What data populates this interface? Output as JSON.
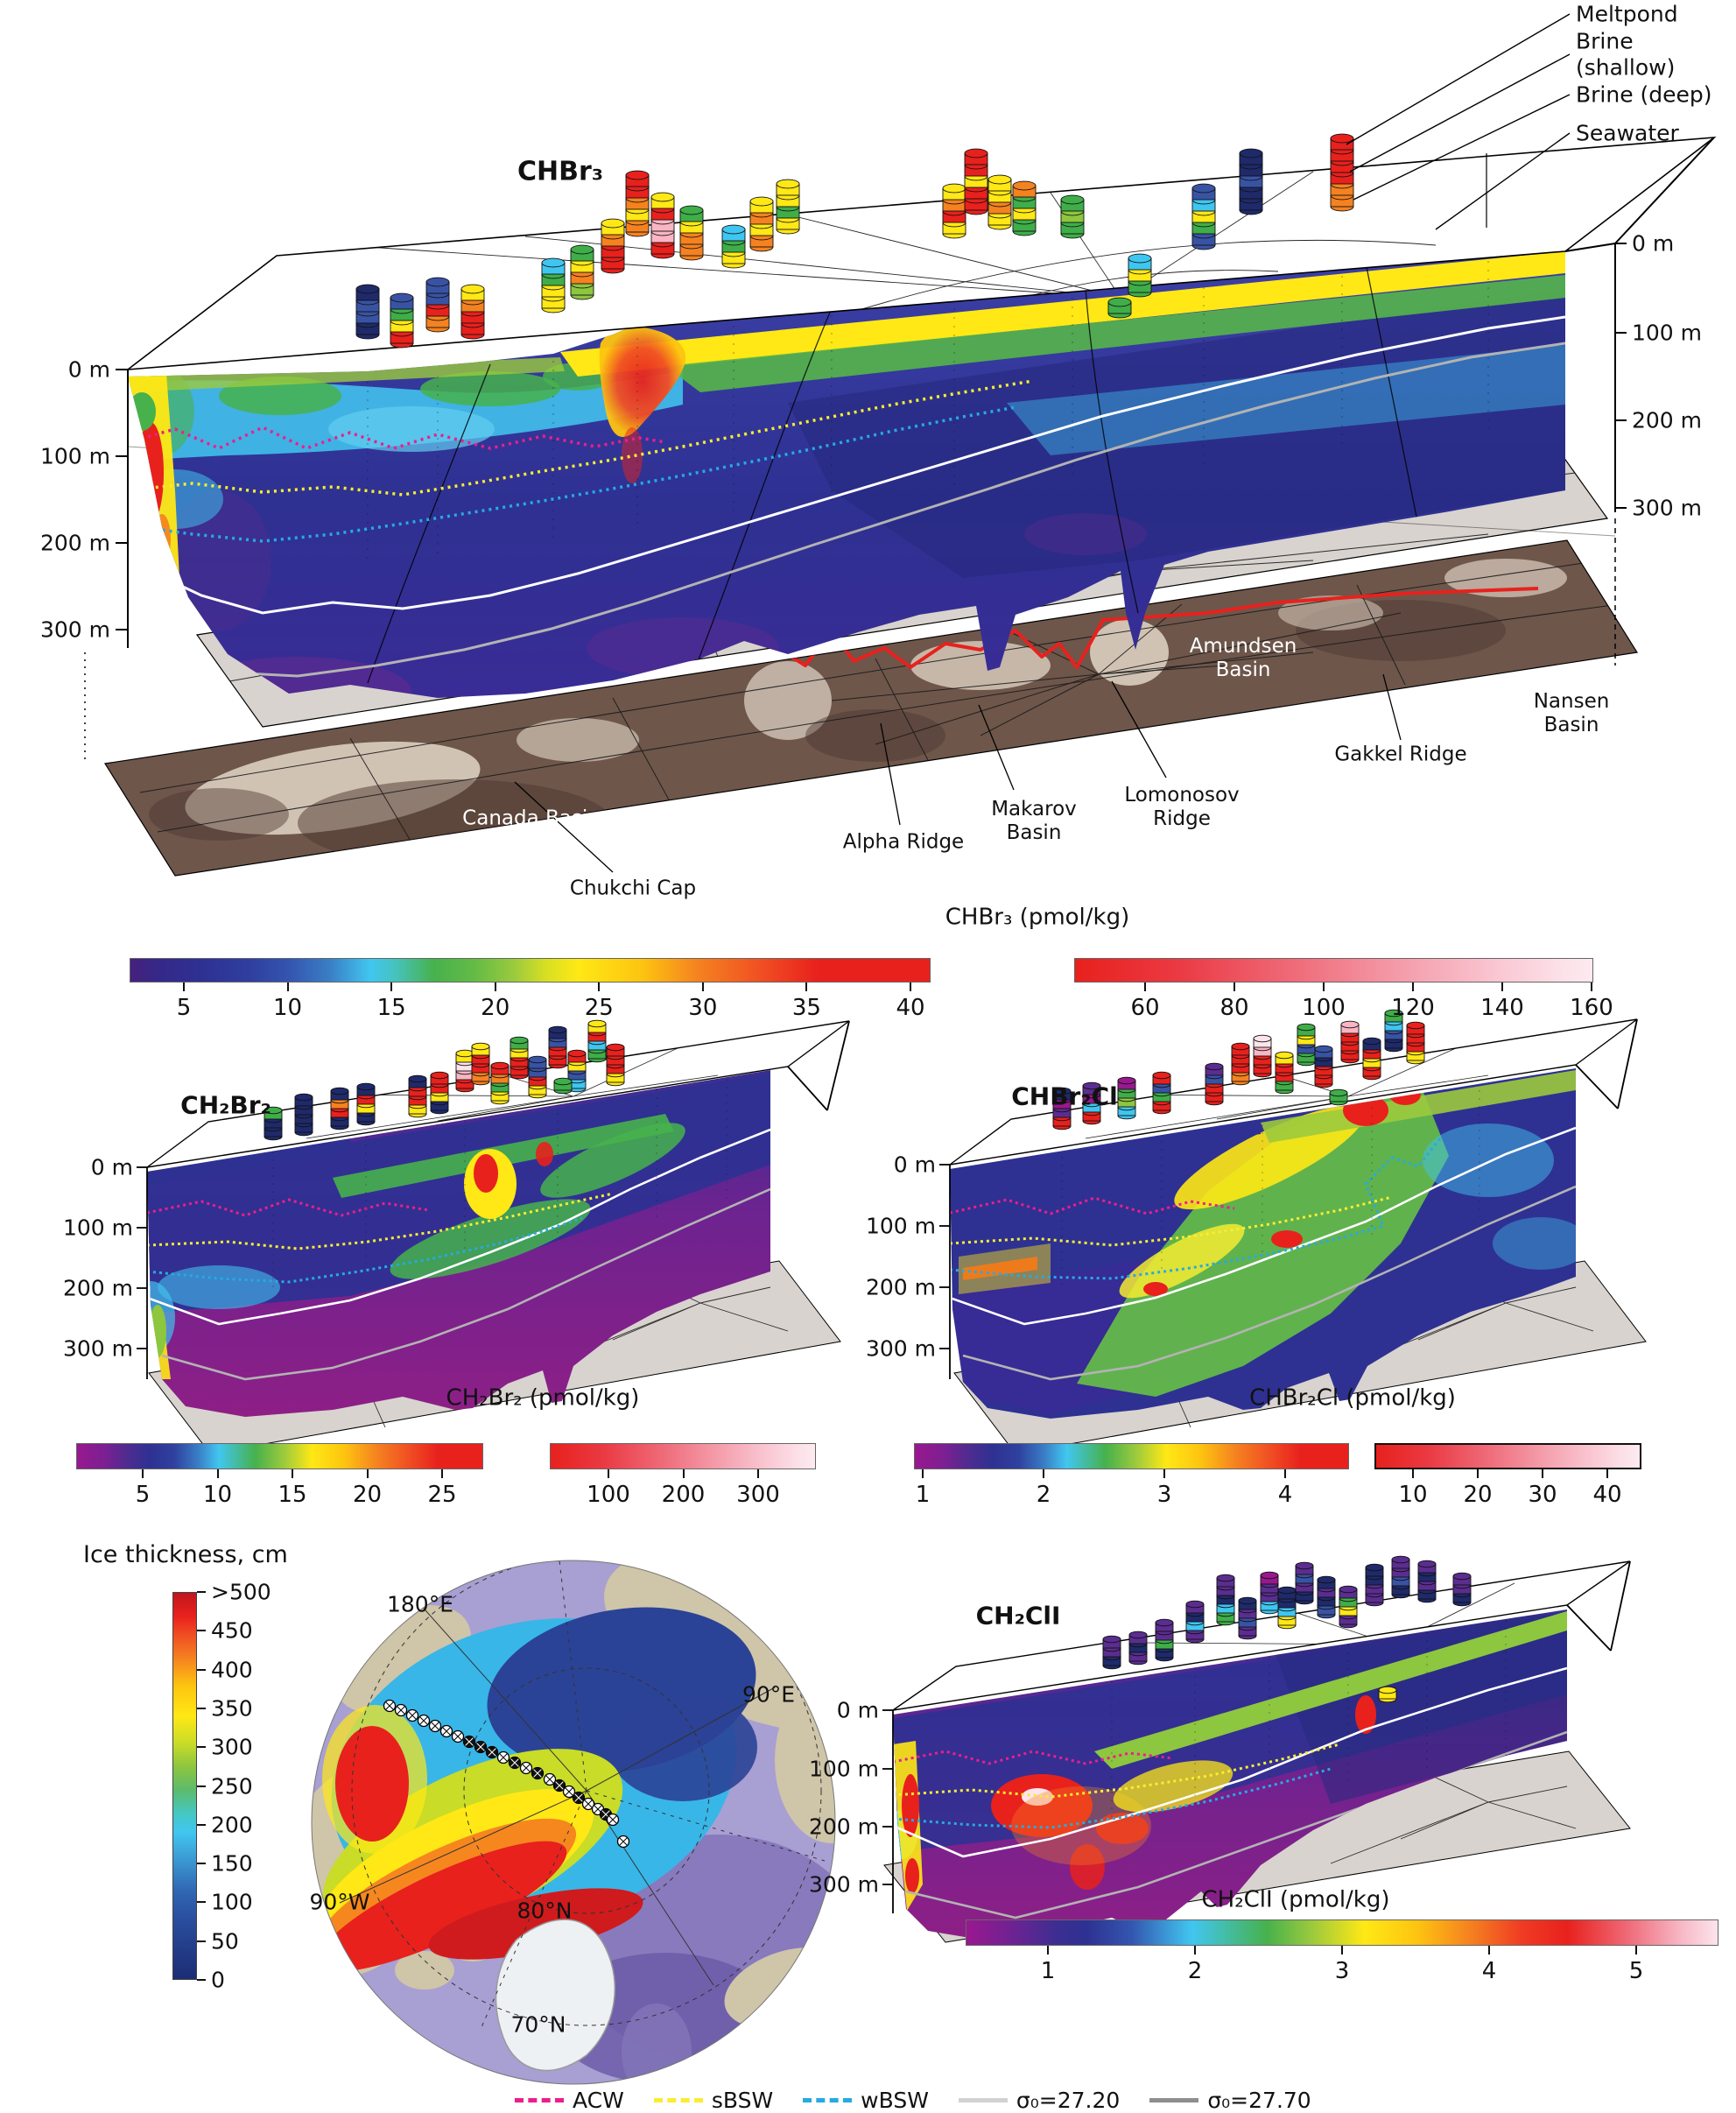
{
  "palette": {
    "R": "#e8211d",
    "O": "#f58220",
    "Y": "#ffe815",
    "G": "#3fae49",
    "LG": "#8dc63f",
    "C": "#3fc6f0",
    "B": "#3953a4",
    "N": "#1f2a6b",
    "P": "#f9b5c4",
    "W": "#fce4ec",
    "M": "#99188f",
    "V": "#5b2d90"
  },
  "chbr3": {
    "title": "CHBr₃",
    "callouts": {
      "meltpond": "Meltpond",
      "brine_shallow": "Brine (shallow)",
      "brine_deep": "Brine (deep)",
      "seawater": "Seawater"
    },
    "depth_left": [
      "0 m",
      "100 m",
      "200 m",
      "300 m"
    ],
    "depth_right": [
      "0 m",
      "100 m",
      "200 m",
      "300 m"
    ],
    "geo": {
      "canada": "Canada Basin",
      "chukchi": "Chukchi Cap",
      "alpha": "Alpha Ridge",
      "makarov": "Makarov\nBasin",
      "lomonosov": "Lomonosov\nRidge",
      "amundsen": "Amundsen\nBasin",
      "gakkel": "Gakkel Ridge",
      "nansen": "Nansen\nBasin"
    },
    "colorbar": {
      "title": "CHBr₃ (pmol/kg)",
      "ticks1": [
        "5",
        "10",
        "15",
        "20",
        "25",
        "30",
        "35",
        "40"
      ],
      "ticks2": [
        "60",
        "80",
        "100",
        "120",
        "140",
        "160"
      ]
    },
    "cylinders": [
      [
        420,
        330,
        [
          "N",
          "B",
          "B",
          "N"
        ]
      ],
      [
        459,
        340,
        [
          "B",
          "G",
          "Y",
          "R"
        ]
      ],
      [
        500,
        322,
        [
          "B",
          "B",
          "R",
          "O"
        ]
      ],
      [
        540,
        330,
        [
          "Y",
          "O",
          "R",
          "R"
        ]
      ],
      [
        632,
        300,
        [
          "C",
          "G",
          "Y",
          "Y"
        ]
      ],
      [
        665,
        285,
        [
          "G",
          "Y",
          "O",
          "LG"
        ]
      ],
      [
        700,
        255,
        [
          "Y",
          "O",
          "R",
          "R"
        ]
      ],
      [
        728,
        200,
        [
          "R",
          "R",
          "O",
          "Y",
          "O"
        ]
      ],
      [
        757,
        225,
        [
          "Y",
          "R",
          "P",
          "P",
          "R"
        ]
      ],
      [
        790,
        240,
        [
          "G",
          "Y",
          "O",
          "O"
        ]
      ],
      [
        838,
        262,
        [
          "C",
          "G",
          "Y"
        ]
      ],
      [
        870,
        230,
        [
          "Y",
          "O",
          "Y",
          "O"
        ]
      ],
      [
        900,
        210,
        [
          "Y",
          "Y",
          "G",
          "Y"
        ]
      ],
      [
        1090,
        215,
        [
          "Y",
          "O",
          "R",
          "Y"
        ]
      ],
      [
        1115,
        175,
        [
          "R",
          "R",
          "Y",
          "R",
          "R"
        ]
      ],
      [
        1142,
        205,
        [
          "Y",
          "Y",
          "O",
          "Y"
        ]
      ],
      [
        1170,
        212,
        [
          "O",
          "G",
          "Y",
          "G"
        ]
      ],
      [
        1225,
        228,
        [
          "G",
          "LG",
          "G"
        ]
      ],
      [
        1279,
        345,
        [
          "G"
        ]
      ],
      [
        1302,
        295,
        [
          "C",
          "Y",
          "G"
        ]
      ],
      [
        1375,
        215,
        [
          "B",
          "C",
          "Y",
          "G",
          "B"
        ]
      ],
      [
        1429,
        175,
        [
          "N",
          "N",
          "B",
          "N",
          "N"
        ]
      ],
      [
        1533,
        158,
        [
          "R",
          "R",
          "R",
          "R",
          "O",
          "O"
        ]
      ]
    ]
  },
  "ch2br2": {
    "title": "CH₂Br₂",
    "depth_left": [
      "0 m",
      "100 m",
      "200 m",
      "300 m"
    ],
    "colorbar": {
      "title": "CH₂Br₂ (pmol/kg)",
      "ticks1": [
        "5",
        "10",
        "15",
        "20",
        "25"
      ],
      "ticks2": [
        "100",
        "200",
        "300"
      ]
    },
    "cylinders": [
      [
        312,
        1268,
        [
          "G",
          "N",
          "N"
        ]
      ],
      [
        347,
        1253,
        [
          "N",
          "N",
          "N",
          "N"
        ]
      ],
      [
        388,
        1246,
        [
          "N",
          "O",
          "R",
          "N"
        ]
      ],
      [
        418,
        1241,
        [
          "N",
          "R",
          "Y",
          "N"
        ]
      ],
      [
        477,
        1232,
        [
          "N",
          "R",
          "R",
          "Y"
        ]
      ],
      [
        502,
        1228,
        [
          "R",
          "R",
          "Y",
          "N"
        ]
      ],
      [
        531,
        1203,
        [
          "Y",
          "W",
          "P",
          "R"
        ]
      ],
      [
        549,
        1195,
        [
          "Y",
          "R",
          "R",
          "O"
        ]
      ],
      [
        571,
        1217,
        [
          "R",
          "O",
          "G",
          "Y"
        ]
      ],
      [
        593,
        1188,
        [
          "G",
          "Y",
          "R",
          "R"
        ]
      ],
      [
        614,
        1210,
        [
          "B",
          "B",
          "R",
          "Y"
        ]
      ],
      [
        637,
        1176,
        [
          "N",
          "B",
          "R",
          "R"
        ]
      ],
      [
        659,
        1203,
        [
          "R",
          "Y",
          "B",
          "C"
        ]
      ],
      [
        643,
        1235,
        [
          "G"
        ]
      ],
      [
        682,
        1169,
        [
          "Y",
          "R",
          "C",
          "G"
        ]
      ],
      [
        703,
        1196,
        [
          "R",
          "R",
          "R",
          "Y"
        ]
      ]
    ]
  },
  "chbr2cl": {
    "title": "CHBr₂Cl",
    "depth_left": [
      "0 m",
      "100 m",
      "200 m",
      "300 m"
    ],
    "colorbar": {
      "title": "CHBr₂Cl (pmol/kg)",
      "ticks1": [
        "1",
        "2",
        "3",
        "4"
      ],
      "ticks2": [
        "10",
        "20",
        "30",
        "40"
      ]
    },
    "cylinders": [
      [
        1213,
        1246,
        [
          "N",
          "M",
          "V",
          "R"
        ]
      ],
      [
        1247,
        1240,
        [
          "V",
          "M",
          "C",
          "R"
        ]
      ],
      [
        1287,
        1234,
        [
          "M",
          "G",
          "LG",
          "C"
        ]
      ],
      [
        1327,
        1228,
        [
          "R",
          "B",
          "G",
          "R"
        ]
      ],
      [
        1387,
        1218,
        [
          "V",
          "B",
          "R",
          "R"
        ]
      ],
      [
        1417,
        1195,
        [
          "R",
          "R",
          "R",
          "O"
        ]
      ],
      [
        1442,
        1186,
        [
          "W",
          "P",
          "R",
          "R"
        ]
      ],
      [
        1467,
        1205,
        [
          "Y",
          "R",
          "R",
          "G"
        ]
      ],
      [
        1492,
        1173,
        [
          "G",
          "Y",
          "B",
          "G"
        ]
      ],
      [
        1512,
        1198,
        [
          "B",
          "N",
          "R",
          "R"
        ]
      ],
      [
        1542,
        1170,
        [
          "P",
          "R",
          "R",
          "R"
        ]
      ],
      [
        1567,
        1189,
        [
          "N",
          "R",
          "Y",
          "R"
        ]
      ],
      [
        1592,
        1157,
        [
          "G",
          "C",
          "B",
          "N"
        ]
      ],
      [
        1617,
        1171,
        [
          "R",
          "R",
          "R",
          "Y"
        ]
      ],
      [
        1529,
        1248,
        [
          "G"
        ]
      ]
    ]
  },
  "ch2cli": {
    "title": "CH₂ClI",
    "depth_left": [
      "0 m",
      "100 m",
      "200 m",
      "300 m"
    ],
    "colorbar": {
      "title": "CH₂ClI (pmol/kg)",
      "ticks1": [
        "1",
        "2",
        "3",
        "4",
        "5"
      ]
    },
    "cylinders": [
      [
        1270,
        1872,
        [
          "V",
          "V",
          "N"
        ]
      ],
      [
        1300,
        1867,
        [
          "V",
          "N",
          "V"
        ]
      ],
      [
        1330,
        1853,
        [
          "V",
          "V",
          "G",
          "N"
        ]
      ],
      [
        1365,
        1832,
        [
          "V",
          "N",
          "C",
          "V"
        ]
      ],
      [
        1400,
        1802,
        [
          "V",
          "V",
          "N",
          "C",
          "G"
        ]
      ],
      [
        1425,
        1828,
        [
          "N",
          "V",
          "B",
          "V"
        ]
      ],
      [
        1450,
        1799,
        [
          "M",
          "V",
          "V",
          "C"
        ]
      ],
      [
        1470,
        1816,
        [
          "N",
          "N",
          "C",
          "Y"
        ]
      ],
      [
        1490,
        1788,
        [
          "V",
          "B",
          "V",
          "N"
        ]
      ],
      [
        1515,
        1804,
        [
          "N",
          "V",
          "N",
          "B"
        ]
      ],
      [
        1540,
        1815,
        [
          "V",
          "G",
          "Y",
          "V"
        ]
      ],
      [
        1570,
        1790,
        [
          "N",
          "N",
          "V",
          "V"
        ]
      ],
      [
        1600,
        1781,
        [
          "V",
          "V",
          "B",
          "N"
        ]
      ],
      [
        1630,
        1786,
        [
          "V",
          "N",
          "V",
          "N"
        ]
      ],
      [
        1670,
        1800,
        [
          "V",
          "V",
          "N"
        ]
      ],
      [
        1585,
        1930,
        [
          "Y"
        ]
      ]
    ]
  },
  "ice_map": {
    "title": "Ice thickness, cm",
    "ticks": [
      ">500",
      "450",
      "400",
      "350",
      "300",
      "250",
      "200",
      "150",
      "100",
      "50",
      "0"
    ],
    "labels": {
      "e180": "180°E",
      "e90": "90°E",
      "w90": "90°W",
      "n80": "80°N",
      "n70": "70°N"
    },
    "stations": [
      [
        105,
        203,
        0
      ],
      [
        118,
        208,
        0
      ],
      [
        131,
        214,
        0
      ],
      [
        144,
        220,
        0
      ],
      [
        157,
        226,
        0
      ],
      [
        170,
        232,
        0
      ],
      [
        183,
        238,
        0
      ],
      [
        196,
        244,
        1
      ],
      [
        209,
        250,
        1
      ],
      [
        222,
        256,
        1
      ],
      [
        235,
        262,
        0
      ],
      [
        248,
        268,
        1
      ],
      [
        261,
        274,
        0
      ],
      [
        274,
        280,
        1
      ],
      [
        288,
        287,
        0
      ],
      [
        299,
        294,
        1
      ],
      [
        310,
        301,
        0
      ],
      [
        321,
        308,
        1
      ],
      [
        332,
        315,
        0
      ],
      [
        343,
        321,
        0
      ],
      [
        352,
        327,
        1
      ],
      [
        360,
        333,
        0
      ],
      [
        372,
        358,
        0
      ]
    ]
  },
  "water_legend": {
    "items": [
      {
        "label": "ACW",
        "color": "#ec1e8c",
        "dash": true
      },
      {
        "label": "sBSW",
        "color": "#f9ed32",
        "dash": true
      },
      {
        "label": "wBSW",
        "color": "#27aae1",
        "dash": true
      },
      {
        "label": "σ₀=27.20",
        "color": "#d2d2d2",
        "dash": false
      },
      {
        "label": "σ₀=27.70",
        "color": "#8e8e8e",
        "dash": false
      }
    ]
  },
  "chart_data": [
    {
      "type": "heatmap",
      "title": "CHBr₃",
      "units": "pmol/kg",
      "depth_ticks_m": [
        0,
        100,
        200,
        300
      ],
      "colorbar_main_ticks": [
        5,
        10,
        15,
        20,
        25,
        30,
        35,
        40
      ],
      "colorbar_extended_ticks": [
        60,
        80,
        100,
        120,
        140,
        160
      ],
      "sample_types": [
        "Meltpond",
        "Brine (shallow)",
        "Brine (deep)",
        "Seawater"
      ],
      "bathymetry_features": [
        "Canada Basin",
        "Chukchi Cap",
        "Alpha Ridge",
        "Makarov Basin",
        "Lomonosov Ridge",
        "Amundsen Basin",
        "Gakkel Ridge",
        "Nansen Basin"
      ]
    },
    {
      "type": "heatmap",
      "title": "CH₂Br₂",
      "units": "pmol/kg",
      "depth_ticks_m": [
        0,
        100,
        200,
        300
      ],
      "colorbar_main_ticks": [
        5,
        10,
        15,
        20,
        25
      ],
      "colorbar_extended_ticks": [
        100,
        200,
        300
      ]
    },
    {
      "type": "heatmap",
      "title": "CHBr₂Cl",
      "units": "pmol/kg",
      "depth_ticks_m": [
        0,
        100,
        200,
        300
      ],
      "colorbar_main_ticks": [
        1,
        2,
        3,
        4
      ],
      "colorbar_extended_ticks": [
        10,
        20,
        30,
        40
      ]
    },
    {
      "type": "heatmap",
      "title": "CH₂ClI",
      "units": "pmol/kg",
      "depth_ticks_m": [
        0,
        100,
        200,
        300
      ],
      "colorbar_main_ticks": [
        1,
        2,
        3,
        4,
        5
      ]
    },
    {
      "type": "heatmap",
      "title": "Ice thickness, cm",
      "colorbar_ticks": [
        ">500",
        450,
        400,
        350,
        300,
        250,
        200,
        150,
        100,
        50,
        0
      ],
      "map_graticule_labels": [
        "180°E",
        "90°E",
        "90°W",
        "80°N",
        "70°N"
      ]
    }
  ],
  "contour_legend_note": "ACW, sBSW, wBSW water-mass boundaries (dashed); σ₀=27.20 and σ₀=27.70 isopycnals (solid)"
}
